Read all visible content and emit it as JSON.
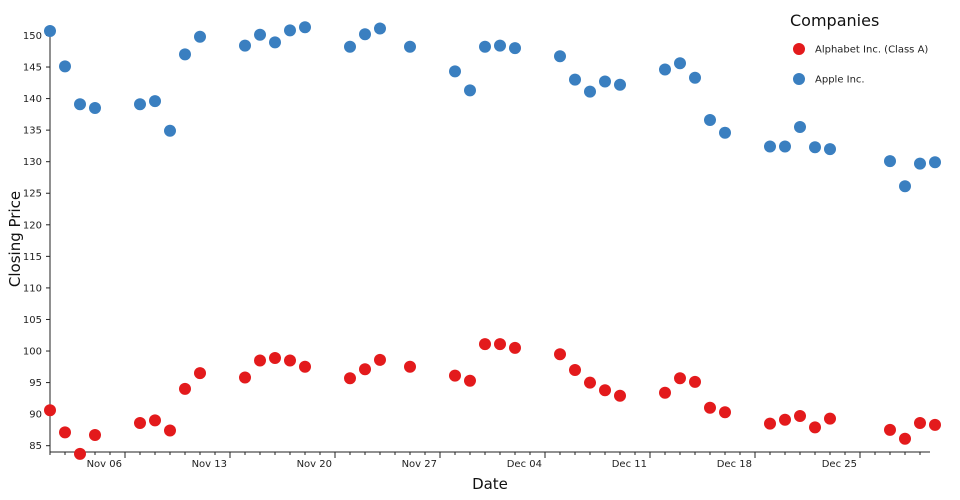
{
  "chart_data": {
    "type": "scatter",
    "xlabel": "Date",
    "ylabel": "Closing Price",
    "x_ticks": [
      {
        "date": "2023-11-06",
        "label": "Nov 06"
      },
      {
        "date": "2023-11-13",
        "label": "Nov 13"
      },
      {
        "date": "2023-11-20",
        "label": "Nov 20"
      },
      {
        "date": "2023-11-27",
        "label": "Nov 27"
      },
      {
        "date": "2023-12-04",
        "label": "Dec 04"
      },
      {
        "date": "2023-12-11",
        "label": "Dec 11"
      },
      {
        "date": "2023-12-18",
        "label": "Dec 18"
      },
      {
        "date": "2023-12-25",
        "label": "Dec 25"
      }
    ],
    "xlim": [
      "2023-11-01",
      "2023-12-29"
    ],
    "ylim": [
      84,
      151.5
    ],
    "y_ticks": [
      85,
      90,
      95,
      100,
      105,
      110,
      115,
      120,
      125,
      130,
      135,
      140,
      145,
      150
    ],
    "grid": false,
    "legend": {
      "title": "Companies",
      "position": "top-right"
    },
    "series": [
      {
        "name": "Alphabet Inc. (Class A)",
        "color": "#e31a1c",
        "points": [
          [
            "2023-11-01",
            90.6
          ],
          [
            "2023-11-02",
            87.1
          ],
          [
            "2023-11-03",
            83.7
          ],
          [
            "2023-11-04",
            86.7
          ],
          [
            "2023-11-07",
            88.6
          ],
          [
            "2023-11-08",
            89.0
          ],
          [
            "2023-11-09",
            87.4
          ],
          [
            "2023-11-10",
            94.0
          ],
          [
            "2023-11-11",
            96.5
          ],
          [
            "2023-11-14",
            95.8
          ],
          [
            "2023-11-15",
            98.5
          ],
          [
            "2023-11-16",
            98.9
          ],
          [
            "2023-11-17",
            98.5
          ],
          [
            "2023-11-18",
            97.5
          ],
          [
            "2023-11-21",
            95.7
          ],
          [
            "2023-11-22",
            97.1
          ],
          [
            "2023-11-23",
            98.6
          ],
          [
            "2023-11-25",
            97.5
          ],
          [
            "2023-11-28",
            96.1
          ],
          [
            "2023-11-29",
            95.3
          ],
          [
            "2023-11-30",
            101.1
          ],
          [
            "2023-12-01",
            101.1
          ],
          [
            "2023-12-02",
            100.5
          ],
          [
            "2023-12-05",
            99.5
          ],
          [
            "2023-12-06",
            97.0
          ],
          [
            "2023-12-07",
            95.0
          ],
          [
            "2023-12-08",
            93.8
          ],
          [
            "2023-12-09",
            92.9
          ],
          [
            "2023-12-12",
            93.4
          ],
          [
            "2023-12-13",
            95.7
          ],
          [
            "2023-12-14",
            95.1
          ],
          [
            "2023-12-15",
            91.0
          ],
          [
            "2023-12-16",
            90.3
          ],
          [
            "2023-12-19",
            88.5
          ],
          [
            "2023-12-20",
            89.1
          ],
          [
            "2023-12-21",
            89.7
          ],
          [
            "2023-12-22",
            87.9
          ],
          [
            "2023-12-23",
            89.3
          ],
          [
            "2023-12-27",
            87.5
          ],
          [
            "2023-12-28",
            86.1
          ],
          [
            "2023-12-29",
            88.6
          ],
          [
            "2023-12-30",
            88.3
          ]
        ]
      },
      {
        "name": "Apple Inc.",
        "color": "#3a7fc0",
        "points": [
          [
            "2023-11-01",
            150.7
          ],
          [
            "2023-11-02",
            145.1
          ],
          [
            "2023-11-03",
            139.1
          ],
          [
            "2023-11-04",
            138.5
          ],
          [
            "2023-11-07",
            139.1
          ],
          [
            "2023-11-08",
            139.6
          ],
          [
            "2023-11-09",
            134.9
          ],
          [
            "2023-11-10",
            147.0
          ],
          [
            "2023-11-11",
            149.8
          ],
          [
            "2023-11-14",
            148.4
          ],
          [
            "2023-11-15",
            150.1
          ],
          [
            "2023-11-16",
            148.9
          ],
          [
            "2023-11-17",
            150.8
          ],
          [
            "2023-11-18",
            151.3
          ],
          [
            "2023-11-21",
            148.2
          ],
          [
            "2023-11-22",
            150.2
          ],
          [
            "2023-11-23",
            151.1
          ],
          [
            "2023-11-25",
            148.2
          ],
          [
            "2023-11-28",
            144.3
          ],
          [
            "2023-11-29",
            141.3
          ],
          [
            "2023-11-30",
            148.2
          ],
          [
            "2023-12-01",
            148.4
          ],
          [
            "2023-12-02",
            148.0
          ],
          [
            "2023-12-05",
            146.7
          ],
          [
            "2023-12-06",
            143.0
          ],
          [
            "2023-12-07",
            141.1
          ],
          [
            "2023-12-08",
            142.7
          ],
          [
            "2023-12-09",
            142.2
          ],
          [
            "2023-12-12",
            144.6
          ],
          [
            "2023-12-13",
            145.6
          ],
          [
            "2023-12-14",
            143.3
          ],
          [
            "2023-12-15",
            136.6
          ],
          [
            "2023-12-16",
            134.6
          ],
          [
            "2023-12-19",
            132.4
          ],
          [
            "2023-12-20",
            132.4
          ],
          [
            "2023-12-21",
            135.5
          ],
          [
            "2023-12-22",
            132.3
          ],
          [
            "2023-12-23",
            132.0
          ],
          [
            "2023-12-27",
            130.1
          ],
          [
            "2023-12-28",
            126.1
          ],
          [
            "2023-12-29",
            129.7
          ],
          [
            "2023-12-30",
            129.9
          ]
        ]
      }
    ]
  }
}
